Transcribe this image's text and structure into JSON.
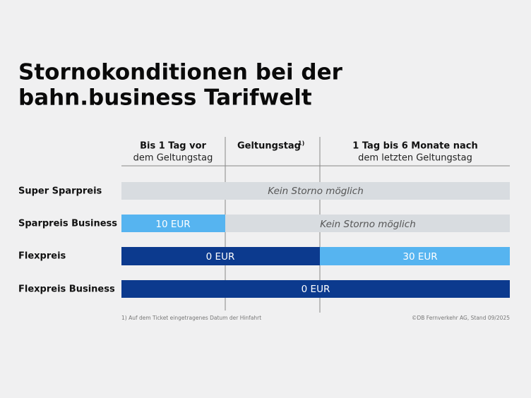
{
  "title": {
    "line1": "Stornokonditionen bei der",
    "line2": "bahn.business Tarifwelt"
  },
  "columns": [
    {
      "title": "Bis 1 Tag vor",
      "subtitle": "dem Geltungstag"
    },
    {
      "title": "Geltungstag",
      "note": "1)"
    },
    {
      "title": "1 Tag bis 6 Monate nach",
      "subtitle": "dem letzten Geltungstag"
    }
  ],
  "rows": [
    {
      "label": "Super Sparpreis",
      "cells": [
        "Kein Storno möglich"
      ]
    },
    {
      "label": "Sparpreis Business",
      "cells": [
        "10 EUR",
        "Kein Storno möglich"
      ]
    },
    {
      "label": "Flexpreis",
      "cells": [
        "0 EUR",
        "30 EUR"
      ]
    },
    {
      "label": "Flexpreis Business",
      "cells": [
        "0 EUR"
      ]
    }
  ],
  "footnote": "1) Auf dem Ticket eingetragenes Datum der Hinfahrt",
  "copyright": "©DB Fernverkehr AG, Stand 09/2025"
}
